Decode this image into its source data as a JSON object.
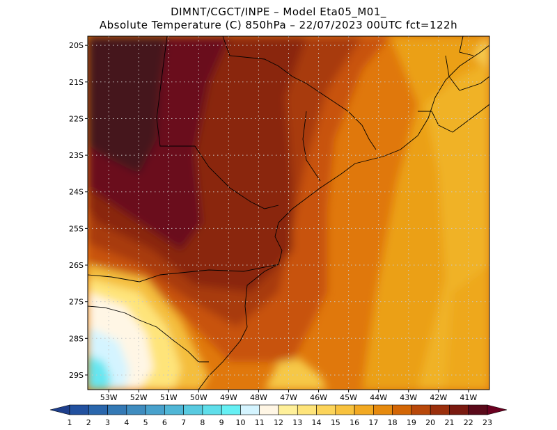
{
  "title": {
    "line1": "DIMNT/CGCT/INPE –  Model Eta05_M01_",
    "line2": "Absolute Temperature (C) 850hPa –  22/07/2023 00UTC fct=122h"
  },
  "map": {
    "lat_labels": [
      "20S",
      "21S",
      "22S",
      "23S",
      "24S",
      "25S",
      "26S",
      "27S",
      "28S",
      "29S"
    ],
    "lon_labels": [
      "53W",
      "52W",
      "51W",
      "50W",
      "49W",
      "48W",
      "47W",
      "46W",
      "45W",
      "44W",
      "43W",
      "42W",
      "41W"
    ],
    "lat_values": [
      -20,
      -21,
      -22,
      -23,
      -24,
      -25,
      -26,
      -27,
      -28,
      -29
    ],
    "lon_values": [
      -53,
      -52,
      -51,
      -50,
      -49,
      -48,
      -47,
      -46,
      -45,
      -44,
      -43,
      -42,
      -41
    ],
    "extent": {
      "lon_min": -53.7,
      "lon_max": -40.3,
      "lat_max": -19.75,
      "lat_min": -29.4
    }
  },
  "colorbar": {
    "labels": [
      "1",
      "2",
      "3",
      "4",
      "5",
      "6",
      "7",
      "8",
      "9",
      "10",
      "11",
      "12",
      "13",
      "14",
      "15",
      "16",
      "17",
      "18",
      "19",
      "20",
      "21",
      "22",
      "23"
    ],
    "colors": [
      "#1e3f8c",
      "#22519f",
      "#2a66ac",
      "#3479b5",
      "#3f8cbf",
      "#48a1cc",
      "#50b6d6",
      "#58cae0",
      "#5fdeea",
      "#66f0f4",
      "#d4f4ff",
      "#fff6e5",
      "#fff09a",
      "#fee47a",
      "#fcd45a",
      "#f8c23e",
      "#f2a922",
      "#e68a0e",
      "#d36605",
      "#b8480a",
      "#9a2f0c",
      "#7a1a10",
      "#5a0a1a",
      "#6a0020"
    ]
  }
}
